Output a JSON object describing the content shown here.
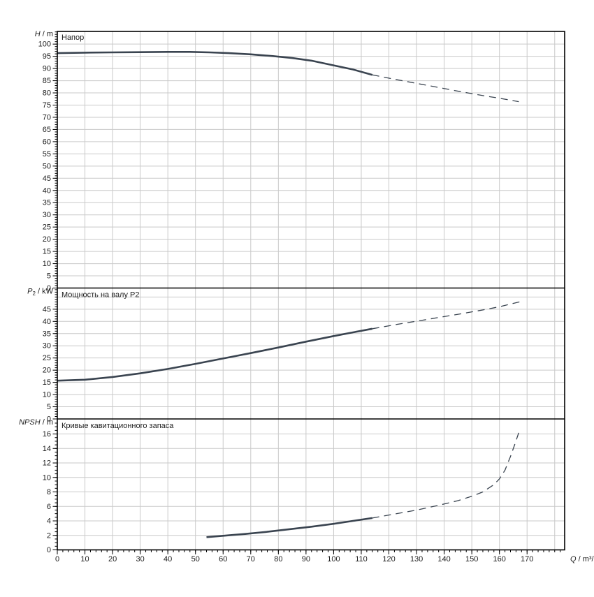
{
  "page": {
    "background": "#ffffff"
  },
  "chart_data": {
    "type": "line",
    "description": "Pump performance chart with three stacked panels sharing one flow axis",
    "colors": {
      "curve": "#3a4450",
      "grid": "#c9c9c9",
      "border": "#000000",
      "text": "#1c1c1c"
    },
    "x_axis": {
      "title": {
        "var": "Q",
        "rest": " / m³/h"
      },
      "min": 0,
      "max": 183.6,
      "major_tick": 10,
      "minor_tick": 2,
      "label_max": 170,
      "tick_labels": [
        "0",
        "10",
        "20",
        "30",
        "40",
        "50",
        "60",
        "70",
        "80",
        "90",
        "100",
        "110",
        "120",
        "130",
        "140",
        "150",
        "160",
        "170"
      ]
    },
    "panels": [
      {
        "id": "head",
        "title": "Напор",
        "axis_title": {
          "var": "H",
          "sub": "",
          "rest": " / m"
        },
        "ymin": 0,
        "ymax": 105.2,
        "major_tick": 5,
        "minor_tick": 1,
        "label_max": 100,
        "tick_labels": [
          "0",
          "5",
          "10",
          "15",
          "20",
          "25",
          "30",
          "35",
          "40",
          "45",
          "50",
          "55",
          "60",
          "65",
          "70",
          "75",
          "80",
          "85",
          "90",
          "95",
          "100"
        ],
        "series": [
          {
            "name": "head-curve-solid",
            "style": "solid",
            "points": [
              [
                0,
                96.3
              ],
              [
                10,
                96.5
              ],
              [
                20,
                96.6
              ],
              [
                30,
                96.7
              ],
              [
                40,
                96.8
              ],
              [
                48,
                96.8
              ],
              [
                55,
                96.6
              ],
              [
                62,
                96.3
              ],
              [
                70,
                95.8
              ],
              [
                78,
                95.1
              ],
              [
                85,
                94.3
              ],
              [
                92,
                93.2
              ],
              [
                100,
                91.3
              ],
              [
                107,
                89.6
              ],
              [
                114,
                87.4
              ]
            ]
          },
          {
            "name": "head-curve-dashed",
            "style": "dashed",
            "points": [
              [
                114,
                87.4
              ],
              [
                122,
                85.6
              ],
              [
                130,
                83.9
              ],
              [
                138,
                82.2
              ],
              [
                146,
                80.5
              ],
              [
                154,
                78.9
              ],
              [
                160,
                77.8
              ],
              [
                167,
                76.4
              ]
            ]
          }
        ]
      },
      {
        "id": "power",
        "title": "Мощность на валу P2",
        "axis_title": {
          "var": "P",
          "sub": "2",
          "rest": " / kW"
        },
        "ymin": 0,
        "ymax": 53.4,
        "major_tick": 5,
        "minor_tick": 1,
        "label_max": 45,
        "tick_labels": [
          "0",
          "5",
          "10",
          "15",
          "20",
          "25",
          "30",
          "35",
          "40",
          "45"
        ],
        "series": [
          {
            "name": "power-curve-solid",
            "style": "solid",
            "points": [
              [
                0,
                15.7
              ],
              [
                10,
                16.1
              ],
              [
                20,
                17.2
              ],
              [
                30,
                18.7
              ],
              [
                40,
                20.5
              ],
              [
                50,
                22.6
              ],
              [
                60,
                24.8
              ],
              [
                70,
                27.0
              ],
              [
                80,
                29.3
              ],
              [
                90,
                31.7
              ],
              [
                100,
                34.0
              ],
              [
                107,
                35.5
              ],
              [
                114,
                37.0
              ]
            ]
          },
          {
            "name": "power-curve-dashed",
            "style": "dashed",
            "points": [
              [
                114,
                37.0
              ],
              [
                122,
                38.6
              ],
              [
                130,
                40.1
              ],
              [
                138,
                41.6
              ],
              [
                146,
                43.1
              ],
              [
                154,
                44.7
              ],
              [
                160,
                46.0
              ],
              [
                168,
                48.2
              ]
            ]
          }
        ]
      },
      {
        "id": "npsh",
        "title": "Кривые кавитационного запаса",
        "axis_title": {
          "var": "NPSH",
          "sub": "",
          "rest": " / m"
        },
        "ymin": 0,
        "ymax": 17.98,
        "major_tick": 2,
        "minor_tick": 0.5,
        "label_max": 16,
        "tick_labels": [
          "0",
          "2",
          "4",
          "6",
          "8",
          "10",
          "12",
          "14",
          "16"
        ],
        "series": [
          {
            "name": "npsh-curve-solid",
            "style": "solid",
            "points": [
              [
                54,
                1.75
              ],
              [
                60,
                1.95
              ],
              [
                68,
                2.2
              ],
              [
                76,
                2.5
              ],
              [
                84,
                2.85
              ],
              [
                92,
                3.2
              ],
              [
                100,
                3.6
              ],
              [
                107,
                4.0
              ],
              [
                114,
                4.4
              ]
            ]
          },
          {
            "name": "npsh-curve-dashed",
            "style": "dashed",
            "points": [
              [
                114,
                4.4
              ],
              [
                122,
                4.95
              ],
              [
                130,
                5.5
              ],
              [
                138,
                6.15
              ],
              [
                145,
                6.8
              ],
              [
                150,
                7.4
              ],
              [
                154,
                8.0
              ],
              [
                158,
                9.0
              ],
              [
                160,
                9.8
              ],
              [
                162,
                11.0
              ],
              [
                164,
                12.9
              ],
              [
                165.5,
                14.5
              ],
              [
                167,
                16.2
              ]
            ]
          }
        ]
      }
    ]
  }
}
